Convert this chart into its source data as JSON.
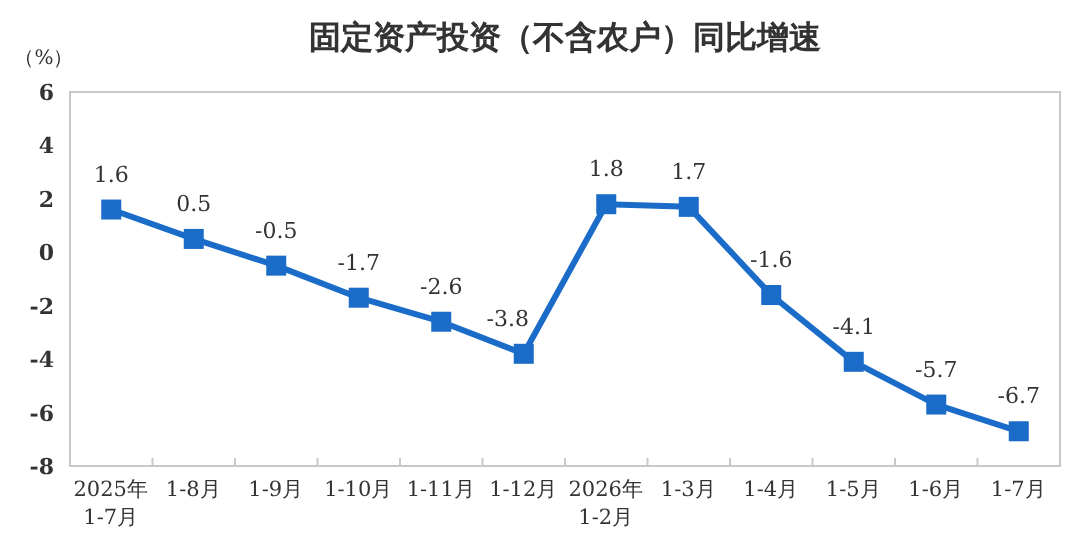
{
  "chart_data": {
    "type": "line",
    "title": "固定资产投资（不含农户）同比增速",
    "ylabel": "（%）",
    "categories": [
      "2025年\n1-7月",
      "1-8月",
      "1-9月",
      "1-10月",
      "1-11月",
      "1-12月",
      "2026年\n1-2月",
      "1-3月",
      "1-4月",
      "1-5月",
      "1-6月",
      "1-7月"
    ],
    "series": [
      {
        "color": "#1a6cc8",
        "values": [
          1.6,
          0.5,
          -0.5,
          -1.7,
          -2.6,
          -3.8,
          1.8,
          1.7,
          -1.6,
          -4.1,
          -5.7,
          -6.7
        ]
      }
    ],
    "ylim": [
      -8,
      6
    ],
    "yticks": [
      -8,
      -6,
      -4,
      -2,
      0,
      2,
      4,
      6
    ],
    "marker": "square",
    "data_labels": true,
    "grid": false
  }
}
